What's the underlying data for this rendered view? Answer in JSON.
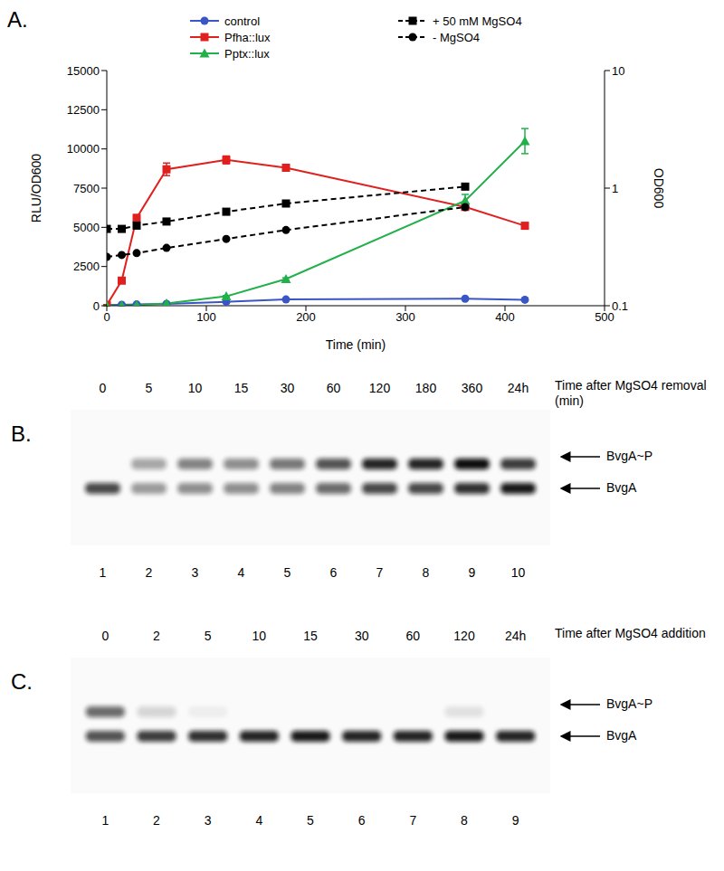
{
  "chart_data": {
    "type": "line",
    "panel": "A.",
    "x_label": "Time (min)",
    "y_label": "RLU/OD600",
    "y2_label": "OD600",
    "x": [
      0,
      15,
      30,
      60,
      120,
      180,
      360,
      420
    ],
    "xlim": [
      0,
      500
    ],
    "xticks": [
      0,
      100,
      200,
      300,
      400,
      500
    ],
    "ylim": [
      0,
      15000
    ],
    "yticks": [
      0,
      2500,
      5000,
      7500,
      10000,
      12500,
      15000
    ],
    "y2lim": [
      0.1,
      10
    ],
    "y2ticks": [
      0.1,
      1,
      10
    ],
    "log": "y2",
    "grid": false,
    "series": [
      {
        "name": "control",
        "color": "#3a55c4",
        "marker": "circle",
        "line_style": "solid",
        "values": [
          50,
          60,
          80,
          120,
          250,
          400,
          450,
          380
        ],
        "errors": [
          20,
          20,
          20,
          20,
          30,
          30,
          40,
          30
        ]
      },
      {
        "name": "Pfha::lux",
        "color": "#e0201e",
        "marker": "square",
        "line_style": "solid",
        "values": [
          50,
          1600,
          5600,
          8700,
          9300,
          8800,
          6300,
          5100
        ],
        "errors": [
          20,
          60,
          200,
          400,
          250,
          150,
          120,
          150
        ]
      },
      {
        "name": "Pptx::lux",
        "color": "#22b04a",
        "marker": "triangle",
        "line_style": "solid",
        "values": [
          0,
          20,
          50,
          150,
          600,
          1700,
          6700,
          10500
        ],
        "errors": [
          10,
          10,
          20,
          30,
          50,
          80,
          400,
          800
        ]
      },
      {
        "name": "+ 50 mM MgSO4",
        "color": "#000000",
        "marker": "square",
        "line_style": "dashed",
        "axis": "y2",
        "values": [
          0.45,
          0.45,
          0.48,
          0.52,
          0.63,
          0.74,
          1.03,
          null
        ]
      },
      {
        "name": "- MgSO4",
        "color": "#000000",
        "marker": "circle",
        "line_style": "dashed",
        "axis": "y2",
        "values": [
          0.26,
          0.27,
          0.28,
          0.31,
          0.37,
          0.44,
          0.69,
          null
        ]
      }
    ]
  },
  "blots": [
    {
      "panel": "B.",
      "time_title": "Time after MgSO4 removal (min)",
      "times": [
        "0",
        "5",
        "10",
        "15",
        "30",
        "60",
        "120",
        "180",
        "360",
        "24h"
      ],
      "lanes": [
        1,
        2,
        3,
        4,
        5,
        6,
        7,
        8,
        9,
        10
      ],
      "bands": [
        {
          "name": "BvgA~P",
          "intensity": [
            0,
            0.35,
            0.5,
            0.45,
            0.55,
            0.7,
            0.9,
            0.9,
            1,
            0.8
          ]
        },
        {
          "name": "BvgA",
          "intensity": [
            0.75,
            0.4,
            0.45,
            0.45,
            0.5,
            0.6,
            0.75,
            0.75,
            0.85,
            0.95
          ]
        }
      ]
    },
    {
      "panel": "C.",
      "time_title": "Time after MgSO4 addition",
      "times": [
        "0",
        "2",
        "5",
        "10",
        "15",
        "30",
        "60",
        "120",
        "24h"
      ],
      "lanes": [
        1,
        2,
        3,
        4,
        5,
        6,
        7,
        8,
        9
      ],
      "bands": [
        {
          "name": "BvgA~P",
          "intensity": [
            0.6,
            0.15,
            0.05,
            0,
            0,
            0,
            0,
            0.1,
            0
          ]
        },
        {
          "name": "BvgA",
          "intensity": [
            0.7,
            0.8,
            0.85,
            0.9,
            0.95,
            0.9,
            0.9,
            0.95,
            0.9
          ]
        }
      ]
    }
  ]
}
